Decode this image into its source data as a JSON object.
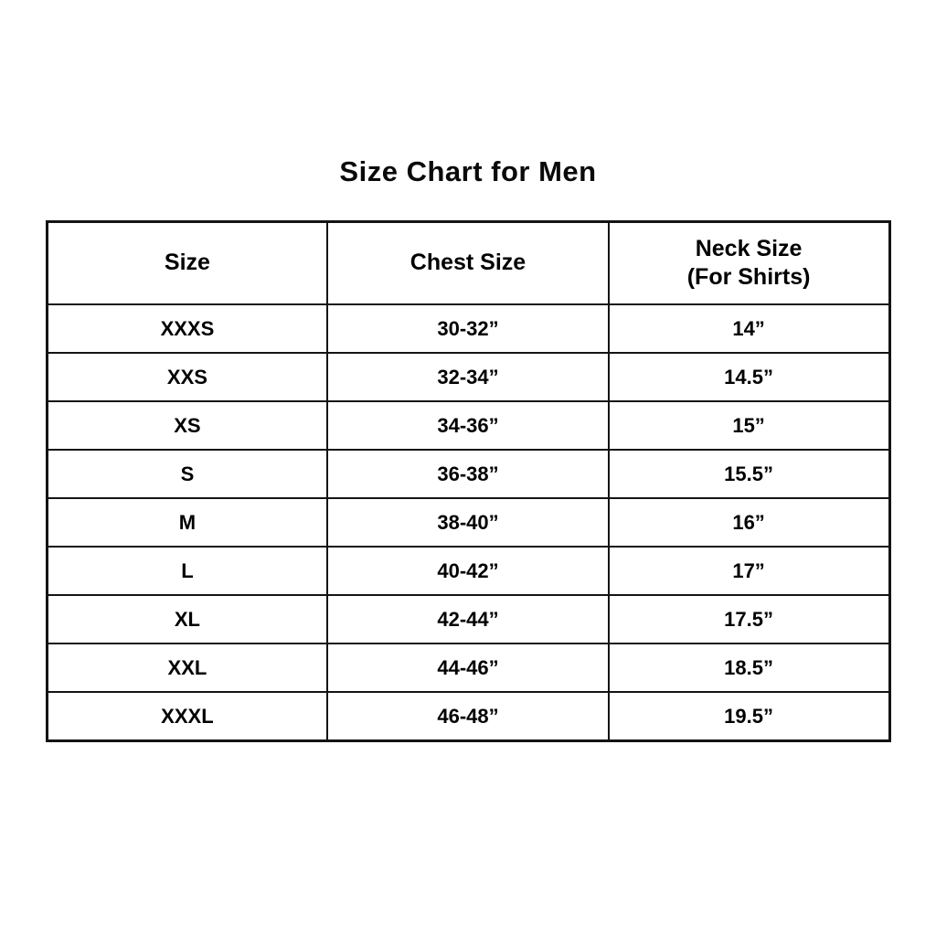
{
  "title": "Size Chart for Men",
  "table": {
    "header": {
      "size": "Size",
      "chest": "Chest Size",
      "neck_line1": "Neck Size",
      "neck_line2": "(For Shirts)"
    },
    "rows": [
      {
        "size": "XXXS",
        "chest": "30-32”",
        "neck": "14”"
      },
      {
        "size": "XXS",
        "chest": "32-34”",
        "neck": "14.5”"
      },
      {
        "size": "XS",
        "chest": "34-36”",
        "neck": "15”"
      },
      {
        "size": "S",
        "chest": "36-38”",
        "neck": "15.5”"
      },
      {
        "size": "M",
        "chest": "38-40”",
        "neck": "16”"
      },
      {
        "size": "L",
        "chest": "40-42”",
        "neck": "17”"
      },
      {
        "size": "XL",
        "chest": "42-44”",
        "neck": "17.5”"
      },
      {
        "size": "XXL",
        "chest": "44-46”",
        "neck": "18.5”"
      },
      {
        "size": "XXXL",
        "chest": "46-48”",
        "neck": "19.5”"
      }
    ]
  },
  "chart_data": {
    "type": "table",
    "title": "Size Chart for Men",
    "columns": [
      "Size",
      "Chest Size",
      "Neck Size (For Shirts)"
    ],
    "rows": [
      [
        "XXXS",
        "30-32”",
        "14”"
      ],
      [
        "XXS",
        "32-34”",
        "14.5”"
      ],
      [
        "XS",
        "34-36”",
        "15”"
      ],
      [
        "S",
        "36-38”",
        "15.5”"
      ],
      [
        "M",
        "38-40”",
        "16”"
      ],
      [
        "L",
        "40-42”",
        "17”"
      ],
      [
        "XL",
        "42-44”",
        "17.5”"
      ],
      [
        "XXL",
        "44-46”",
        "18.5”"
      ],
      [
        "XXXL",
        "46-48”",
        "19.5”"
      ]
    ],
    "text_color": "#000000",
    "border_color": "#141414",
    "background_color": "#ffffff"
  }
}
